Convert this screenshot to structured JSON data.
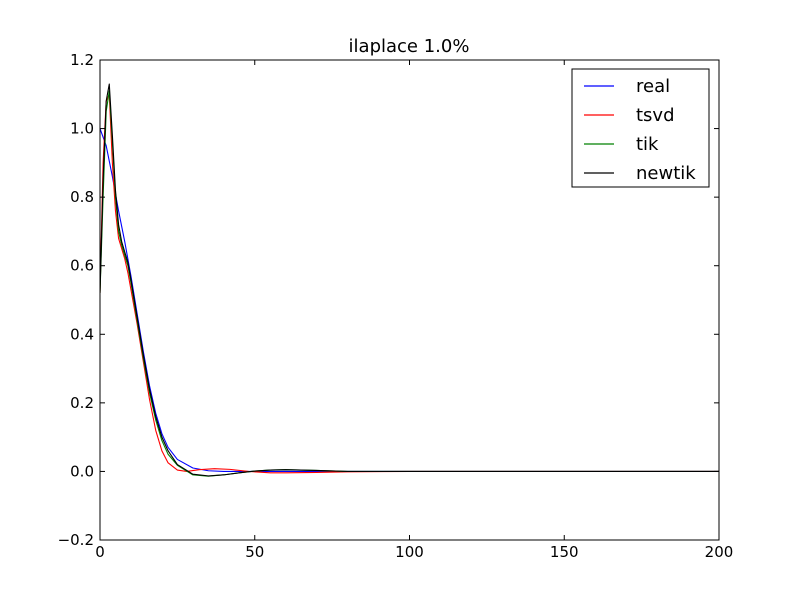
{
  "chart_data": {
    "type": "line",
    "title": "ilaplace 1.0%",
    "xlabel": "",
    "ylabel": "",
    "xlim": [
      0,
      200
    ],
    "ylim": [
      -0.2,
      1.2
    ],
    "grid": false,
    "legend_position": "top-right",
    "x_ticks": [
      0,
      50,
      100,
      150,
      200
    ],
    "x_tick_labels": [
      "0",
      "50",
      "100",
      "150",
      "200"
    ],
    "y_ticks": [
      -0.2,
      0.0,
      0.2,
      0.4,
      0.6,
      0.8,
      1.0,
      1.2
    ],
    "y_tick_labels": [
      "−0.2",
      "0.0",
      "0.2",
      "0.4",
      "0.6",
      "0.8",
      "1.0",
      "1.2"
    ],
    "series": [
      {
        "name": "real",
        "color": "#0000ff",
        "x": [
          0,
          2,
          4,
          6,
          8,
          10,
          12,
          14,
          16,
          18,
          20,
          22,
          25,
          30,
          35,
          40,
          50,
          60,
          80,
          100,
          150,
          200
        ],
        "y": [
          1.0,
          0.95,
          0.86,
          0.76,
          0.67,
          0.57,
          0.46,
          0.35,
          0.25,
          0.17,
          0.11,
          0.07,
          0.035,
          0.01,
          0.002,
          0.0,
          0.0,
          0.0,
          0.0,
          0.0,
          0.0,
          0.0
        ]
      },
      {
        "name": "tsvd",
        "color": "#ff0000",
        "x": [
          0,
          1,
          2,
          3,
          4,
          5,
          6,
          7,
          8,
          9,
          10,
          12,
          14,
          16,
          18,
          20,
          22,
          25,
          28,
          32,
          37,
          42,
          48,
          55,
          60,
          70,
          80,
          100,
          150,
          200
        ],
        "y": [
          0.52,
          0.9,
          1.08,
          1.1,
          0.9,
          0.76,
          0.68,
          0.65,
          0.62,
          0.58,
          0.53,
          0.43,
          0.32,
          0.21,
          0.12,
          0.06,
          0.025,
          0.004,
          0.0,
          0.005,
          0.008,
          0.006,
          0.0,
          -0.004,
          -0.004,
          -0.003,
          -0.001,
          0.0,
          0.0,
          0.0
        ]
      },
      {
        "name": "tik",
        "color": "#008000",
        "x": [
          0,
          1,
          2,
          3,
          4,
          5,
          6,
          7,
          8,
          9,
          10,
          12,
          14,
          16,
          18,
          20,
          22,
          25,
          30,
          35,
          40,
          45,
          50,
          55,
          60,
          65,
          70,
          80,
          100,
          150,
          200
        ],
        "y": [
          0.52,
          0.8,
          1.05,
          1.11,
          0.96,
          0.8,
          0.7,
          0.66,
          0.63,
          0.6,
          0.55,
          0.44,
          0.33,
          0.23,
          0.15,
          0.09,
          0.05,
          0.018,
          -0.01,
          -0.014,
          -0.01,
          -0.004,
          0.001,
          0.004,
          0.005,
          0.004,
          0.003,
          0.0,
          0.0,
          0.0,
          0.0
        ]
      },
      {
        "name": "newtik",
        "color": "#000000",
        "x": [
          0,
          1,
          2,
          3,
          4,
          5,
          6,
          7,
          8,
          9,
          10,
          12,
          14,
          16,
          18,
          20,
          22,
          25,
          30,
          35,
          40,
          45,
          50,
          55,
          60,
          65,
          70,
          80,
          100,
          150,
          200
        ],
        "y": [
          0.52,
          0.85,
          1.08,
          1.13,
          0.98,
          0.82,
          0.72,
          0.67,
          0.64,
          0.61,
          0.56,
          0.45,
          0.34,
          0.24,
          0.16,
          0.1,
          0.06,
          0.02,
          -0.008,
          -0.013,
          -0.01,
          -0.004,
          0.001,
          0.004,
          0.005,
          0.004,
          0.003,
          0.0,
          0.0,
          0.0,
          0.0
        ]
      }
    ]
  }
}
